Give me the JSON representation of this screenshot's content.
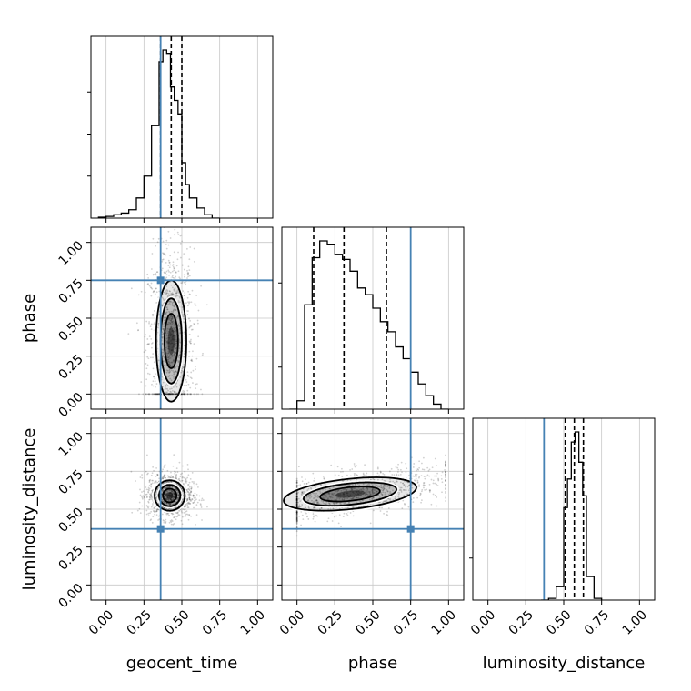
{
  "chart_data": {
    "type": "corner",
    "parameters": [
      "geocent_time",
      "phase",
      "luminosity_distance"
    ],
    "axis_labels": {
      "x": [
        "geocent_time",
        "phase",
        "luminosity_distance"
      ],
      "y": [
        "phase",
        "luminosity_distance"
      ]
    },
    "tick_values": [
      0.0,
      0.25,
      0.5,
      0.75,
      1.0
    ],
    "tick_labels": [
      "0.00",
      "0.25",
      "0.50",
      "0.75",
      "1.00"
    ],
    "xlim": [
      -0.1,
      1.1
    ],
    "ylim": [
      -0.1,
      1.1
    ],
    "grid": true,
    "colors": {
      "truth": "#4682b4",
      "hist": "#000000",
      "grid": "#c8c8c8"
    },
    "truths": {
      "geocent_time": 0.36,
      "phase": 0.75,
      "luminosity_distance": 0.37
    },
    "quantiles": {
      "geocent_time": [
        0.36,
        0.43,
        0.5
      ],
      "phase": [
        0.11,
        0.31,
        0.59
      ],
      "luminosity_distance": [
        0.51,
        0.57,
        0.63
      ]
    },
    "histograms": {
      "geocent_time": {
        "bin_edges": [
          -0.05,
          0.0,
          0.05,
          0.1,
          0.15,
          0.2,
          0.25,
          0.3,
          0.35,
          0.375,
          0.4,
          0.425,
          0.45,
          0.475,
          0.5,
          0.525,
          0.55,
          0.6,
          0.65,
          0.7,
          0.75
        ],
        "counts": [
          0.005,
          0.01,
          0.02,
          0.03,
          0.05,
          0.12,
          0.25,
          0.55,
          0.93,
          1.0,
          0.98,
          0.78,
          0.7,
          0.62,
          0.33,
          0.2,
          0.12,
          0.06,
          0.02,
          0.0
        ]
      },
      "phase": {
        "bin_edges": [
          -0.05,
          0.0,
          0.05,
          0.1,
          0.15,
          0.2,
          0.25,
          0.3,
          0.35,
          0.4,
          0.45,
          0.5,
          0.55,
          0.6,
          0.65,
          0.7,
          0.75,
          0.8,
          0.85,
          0.9,
          0.95,
          1.0
        ],
        "counts": [
          0.0,
          0.05,
          0.62,
          0.9,
          1.0,
          0.98,
          0.92,
          0.89,
          0.82,
          0.72,
          0.68,
          0.6,
          0.52,
          0.46,
          0.37,
          0.3,
          0.22,
          0.15,
          0.08,
          0.03,
          0.0
        ]
      },
      "luminosity_distance": {
        "bin_edges": [
          0.35,
          0.4,
          0.45,
          0.5,
          0.525,
          0.55,
          0.575,
          0.6,
          0.625,
          0.65,
          0.7,
          0.75
        ],
        "counts": [
          0.0,
          0.01,
          0.08,
          0.55,
          0.72,
          0.94,
          1.0,
          0.82,
          0.62,
          0.14,
          0.01
        ]
      }
    },
    "pairs": [
      {
        "x": "geocent_time",
        "y": "phase",
        "center": [
          0.43,
          0.35
        ],
        "spread": [
          0.05,
          0.2
        ]
      },
      {
        "x": "geocent_time",
        "y": "luminosity_distance",
        "center": [
          0.42,
          0.59
        ],
        "spread": [
          0.05,
          0.05
        ]
      },
      {
        "x": "phase",
        "y": "luminosity_distance",
        "center": [
          0.35,
          0.6
        ],
        "spread": [
          0.22,
          0.05
        ]
      }
    ]
  }
}
